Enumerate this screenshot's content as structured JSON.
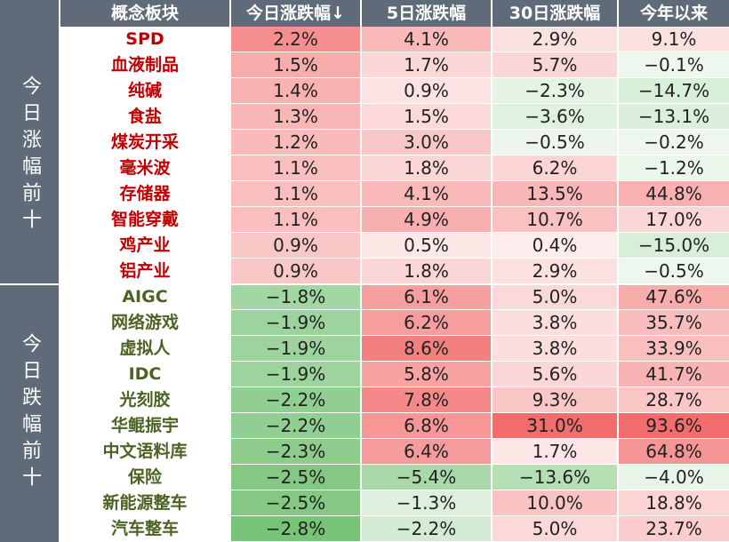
{
  "columns": [
    "概念板块",
    "今日涨跌幅↓",
    "5日涨跌幅",
    "30日涨跌幅",
    "今年以来"
  ],
  "groups": [
    {
      "label": "今日涨幅前十",
      "kind": "up",
      "rows": [
        {
          "name": "SPD",
          "d1": "2.2%",
          "d5": "4.1%",
          "d30": "2.9%",
          "ytd": "9.1%"
        },
        {
          "name": "血液制品",
          "d1": "1.5%",
          "d5": "1.7%",
          "d30": "5.7%",
          "ytd": "−0.1%"
        },
        {
          "name": "纯碱",
          "d1": "1.4%",
          "d5": "0.9%",
          "d30": "−2.3%",
          "ytd": "−14.7%"
        },
        {
          "name": "食盐",
          "d1": "1.3%",
          "d5": "1.5%",
          "d30": "−3.6%",
          "ytd": "−13.1%"
        },
        {
          "name": "煤炭开采",
          "d1": "1.2%",
          "d5": "3.0%",
          "d30": "−0.5%",
          "ytd": "−0.2%"
        },
        {
          "name": "毫米波",
          "d1": "1.1%",
          "d5": "1.8%",
          "d30": "6.2%",
          "ytd": "−1.2%"
        },
        {
          "name": "存储器",
          "d1": "1.1%",
          "d5": "4.1%",
          "d30": "13.5%",
          "ytd": "44.8%"
        },
        {
          "name": "智能穿戴",
          "d1": "1.1%",
          "d5": "4.9%",
          "d30": "10.7%",
          "ytd": "17.0%"
        },
        {
          "name": "鸡产业",
          "d1": "0.9%",
          "d5": "0.5%",
          "d30": "0.4%",
          "ytd": "−15.0%"
        },
        {
          "name": "铝产业",
          "d1": "0.9%",
          "d5": "1.8%",
          "d30": "2.9%",
          "ytd": "−0.5%"
        }
      ]
    },
    {
      "label": "今日跌幅前十",
      "kind": "down",
      "rows": [
        {
          "name": "AIGC",
          "d1": "−1.8%",
          "d5": "6.1%",
          "d30": "5.0%",
          "ytd": "47.6%"
        },
        {
          "name": "网络游戏",
          "d1": "−1.9%",
          "d5": "6.2%",
          "d30": "3.8%",
          "ytd": "35.7%"
        },
        {
          "name": "虚拟人",
          "d1": "−1.9%",
          "d5": "8.6%",
          "d30": "3.8%",
          "ytd": "33.9%"
        },
        {
          "name": "IDC",
          "d1": "−1.9%",
          "d5": "5.8%",
          "d30": "5.6%",
          "ytd": "41.7%"
        },
        {
          "name": "光刻胶",
          "d1": "−2.2%",
          "d5": "7.8%",
          "d30": "9.3%",
          "ytd": "28.7%"
        },
        {
          "name": "华鲲振宇",
          "d1": "−2.2%",
          "d5": "6.8%",
          "d30": "31.0%",
          "ytd": "93.6%"
        },
        {
          "name": "中文语料库",
          "d1": "−2.3%",
          "d5": "6.4%",
          "d30": "1.7%",
          "ytd": "64.8%"
        },
        {
          "name": "保险",
          "d1": "−2.5%",
          "d5": "−5.4%",
          "d30": "−13.6%",
          "ytd": "−4.0%"
        },
        {
          "name": "新能源整车",
          "d1": "−2.5%",
          "d5": "−1.3%",
          "d30": "10.0%",
          "ytd": "18.8%"
        },
        {
          "name": "汽车整车",
          "d1": "−2.8%",
          "d5": "−2.2%",
          "d30": "5.0%",
          "ytd": "23.7%"
        }
      ]
    }
  ],
  "colors": {
    "header_bg": "#5f6b78",
    "up_text": "#c00000",
    "down_text": "#4b6323",
    "positive_max": "#f26d6d",
    "negative_max": "#6fbf6f"
  }
}
